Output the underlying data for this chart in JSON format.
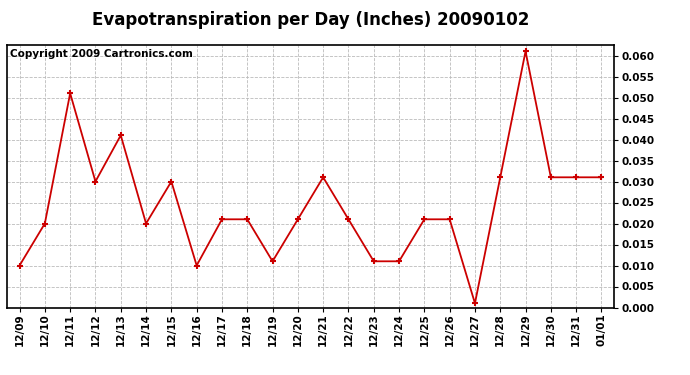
{
  "title": "Evapotranspiration per Day (Inches) 20090102",
  "copyright": "Copyright 2009 Cartronics.com",
  "x_labels": [
    "12/09",
    "12/10",
    "12/11",
    "12/12",
    "12/13",
    "12/14",
    "12/15",
    "12/16",
    "12/17",
    "12/18",
    "12/19",
    "12/20",
    "12/21",
    "12/22",
    "12/23",
    "12/24",
    "12/25",
    "12/26",
    "12/27",
    "12/28",
    "12/29",
    "12/30",
    "12/31",
    "01/01"
  ],
  "y_values": [
    0.01,
    0.02,
    0.051,
    0.03,
    0.041,
    0.02,
    0.03,
    0.01,
    0.021,
    0.021,
    0.011,
    0.021,
    0.031,
    0.021,
    0.011,
    0.011,
    0.021,
    0.021,
    0.001,
    0.031,
    0.061,
    0.031,
    0.031,
    0.031
  ],
  "line_color": "#cc0000",
  "marker": "+",
  "marker_size": 5,
  "marker_linewidth": 1.5,
  "linewidth": 1.3,
  "background_color": "#ffffff",
  "plot_bg_color": "#ffffff",
  "grid_color": "#bbbbbb",
  "ylim": [
    0.0,
    0.0625
  ],
  "ytick_values": [
    0.0,
    0.005,
    0.01,
    0.015,
    0.02,
    0.025,
    0.03,
    0.035,
    0.04,
    0.045,
    0.05,
    0.055,
    0.06
  ],
  "title_fontsize": 12,
  "copyright_fontsize": 7.5,
  "tick_fontsize": 7.5,
  "label_color": "#000000",
  "border_color": "#000000"
}
